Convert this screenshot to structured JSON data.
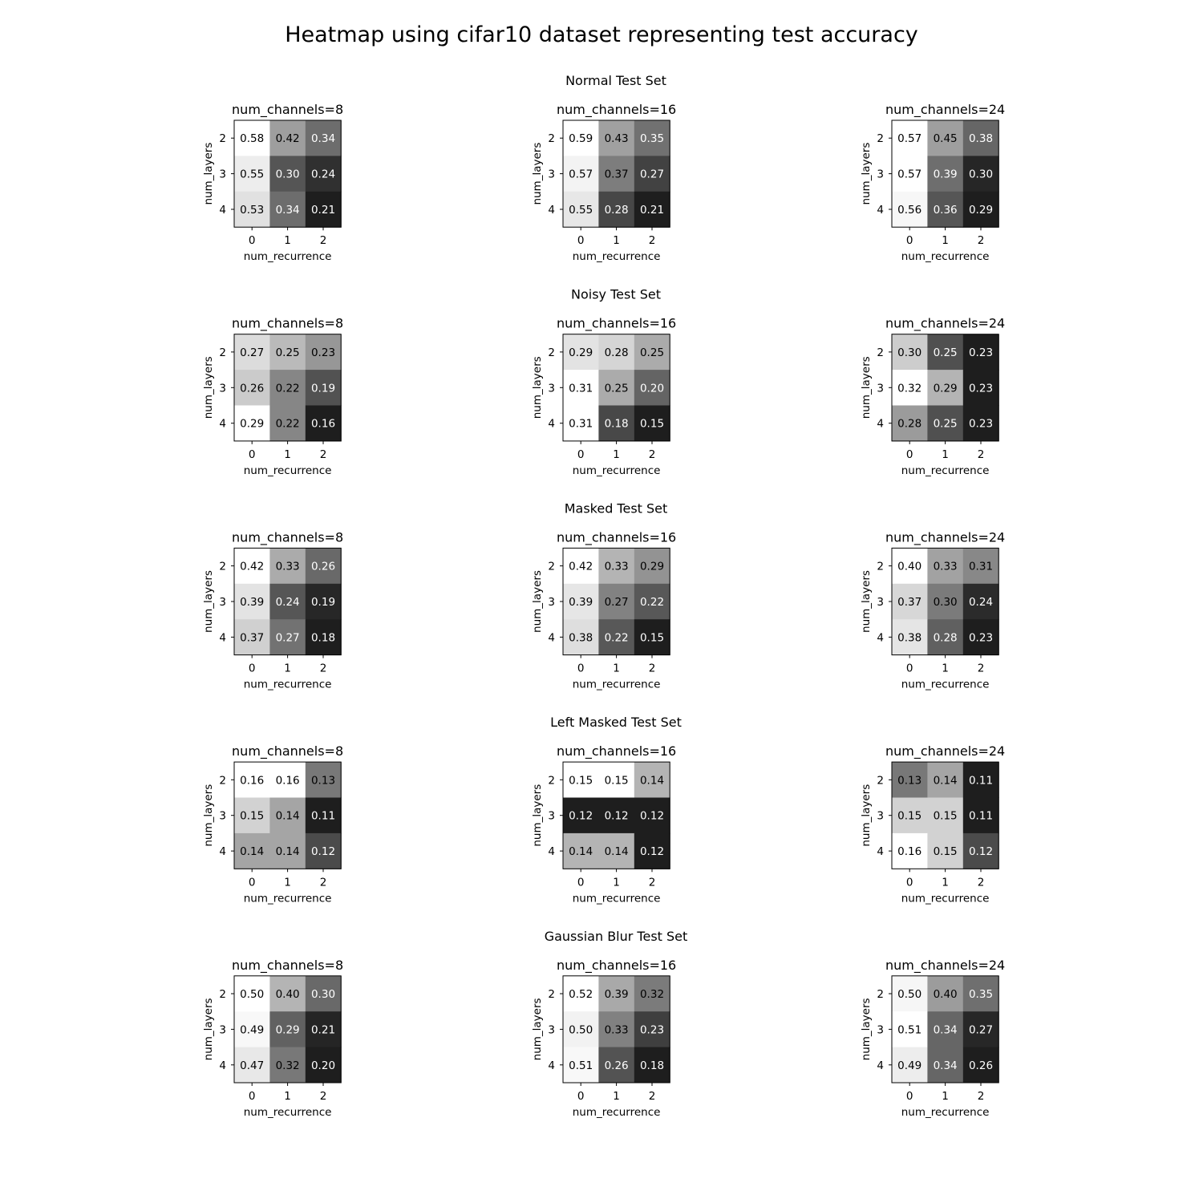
{
  "figure": {
    "title": "Heatmap using cifar10 dataset representing test accuracy"
  },
  "chart_data": {
    "type": "heatmap",
    "title": "Heatmap using cifar10 dataset representing test accuracy",
    "xlabel": "num_recurrence",
    "ylabel": "num_layers",
    "x_ticks": [
      "0",
      "1",
      "2"
    ],
    "y_ticks": [
      "2",
      "3",
      "4"
    ],
    "colormap": "grayscale, lighter = higher value (per-panel normalization)",
    "grid": false,
    "sections": [
      {
        "title": "Normal Test Set",
        "panels": [
          {
            "title": "num_channels=8",
            "values": [
              [
                0.58,
                0.42,
                0.34
              ],
              [
                0.55,
                0.3,
                0.24
              ],
              [
                0.53,
                0.34,
                0.21
              ]
            ]
          },
          {
            "title": "num_channels=16",
            "values": [
              [
                0.59,
                0.43,
                0.35
              ],
              [
                0.57,
                0.37,
                0.27
              ],
              [
                0.55,
                0.28,
                0.21
              ]
            ]
          },
          {
            "title": "num_channels=24",
            "values": [
              [
                0.57,
                0.45,
                0.38
              ],
              [
                0.57,
                0.39,
                0.3
              ],
              [
                0.56,
                0.36,
                0.29
              ]
            ]
          }
        ]
      },
      {
        "title": "Noisy Test Set",
        "panels": [
          {
            "title": "num_channels=8",
            "values": [
              [
                0.27,
                0.25,
                0.23
              ],
              [
                0.26,
                0.22,
                0.19
              ],
              [
                0.29,
                0.22,
                0.16
              ]
            ]
          },
          {
            "title": "num_channels=16",
            "values": [
              [
                0.29,
                0.28,
                0.25
              ],
              [
                0.31,
                0.25,
                0.2
              ],
              [
                0.31,
                0.18,
                0.15
              ]
            ]
          },
          {
            "title": "num_channels=24",
            "values": [
              [
                0.3,
                0.25,
                0.23
              ],
              [
                0.32,
                0.29,
                0.23
              ],
              [
                0.28,
                0.25,
                0.23
              ]
            ]
          }
        ]
      },
      {
        "title": "Masked Test Set",
        "panels": [
          {
            "title": "num_channels=8",
            "values": [
              [
                0.42,
                0.33,
                0.26
              ],
              [
                0.39,
                0.24,
                0.19
              ],
              [
                0.37,
                0.27,
                0.18
              ]
            ]
          },
          {
            "title": "num_channels=16",
            "values": [
              [
                0.42,
                0.33,
                0.29
              ],
              [
                0.39,
                0.27,
                0.22
              ],
              [
                0.38,
                0.22,
                0.15
              ]
            ]
          },
          {
            "title": "num_channels=24",
            "values": [
              [
                0.4,
                0.33,
                0.31
              ],
              [
                0.37,
                0.3,
                0.24
              ],
              [
                0.38,
                0.28,
                0.23
              ]
            ]
          }
        ]
      },
      {
        "title": "Left Masked Test Set",
        "panels": [
          {
            "title": "num_channels=8",
            "values": [
              [
                0.16,
                0.16,
                0.13
              ],
              [
                0.15,
                0.14,
                0.11
              ],
              [
                0.14,
                0.14,
                0.12
              ]
            ]
          },
          {
            "title": "num_channels=16",
            "values": [
              [
                0.15,
                0.15,
                0.14
              ],
              [
                0.12,
                0.12,
                0.12
              ],
              [
                0.14,
                0.14,
                0.12
              ]
            ]
          },
          {
            "title": "num_channels=24",
            "values": [
              [
                0.13,
                0.14,
                0.11
              ],
              [
                0.15,
                0.15,
                0.11
              ],
              [
                0.16,
                0.15,
                0.12
              ]
            ]
          }
        ]
      },
      {
        "title": "Gaussian Blur Test Set",
        "panels": [
          {
            "title": "num_channels=8",
            "values": [
              [
                0.5,
                0.4,
                0.3
              ],
              [
                0.49,
                0.29,
                0.21
              ],
              [
                0.47,
                0.32,
                0.2
              ]
            ]
          },
          {
            "title": "num_channels=16",
            "values": [
              [
                0.52,
                0.39,
                0.32
              ],
              [
                0.5,
                0.33,
                0.23
              ],
              [
                0.51,
                0.26,
                0.18
              ]
            ]
          },
          {
            "title": "num_channels=24",
            "values": [
              [
                0.5,
                0.4,
                0.35
              ],
              [
                0.51,
                0.34,
                0.27
              ],
              [
                0.49,
                0.34,
                0.26
              ]
            ]
          }
        ]
      }
    ]
  }
}
